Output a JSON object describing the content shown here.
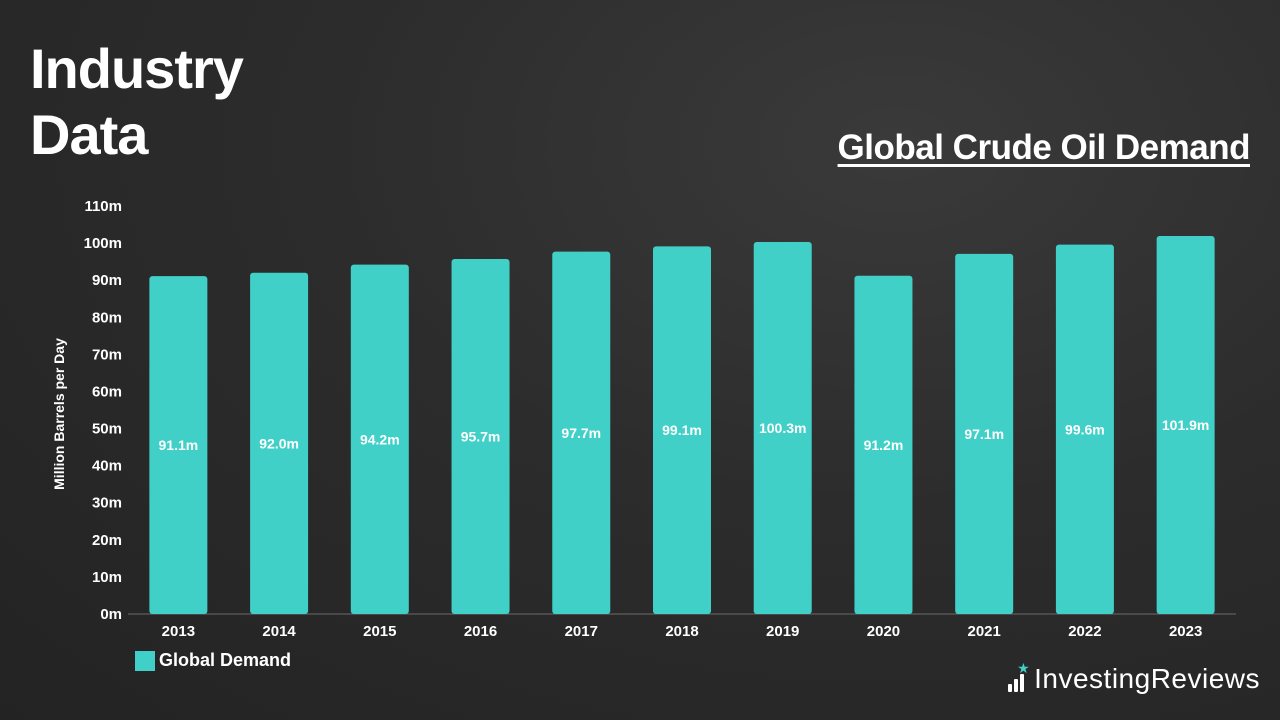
{
  "heading": {
    "line1": "Industry",
    "line2": "Data"
  },
  "chart_title": "Global Crude Oil Demand",
  "colors": {
    "bar": "#40d0c8",
    "background": "#2c2c2c",
    "text": "#ffffff",
    "accent": "#40d0c8"
  },
  "chart_data": {
    "type": "bar",
    "title": "Global Crude Oil Demand",
    "categories": [
      "2013",
      "2014",
      "2015",
      "2016",
      "2017",
      "2018",
      "2019",
      "2020",
      "2021",
      "2022",
      "2023"
    ],
    "series": [
      {
        "name": "Global Demand",
        "values": [
          91.1,
          92.0,
          94.2,
          95.7,
          97.7,
          99.1,
          100.3,
          91.2,
          97.1,
          99.6,
          101.9
        ]
      }
    ],
    "data_labels": [
      "91.1m",
      "92.0m",
      "94.2m",
      "95.7m",
      "97.7m",
      "99.1m",
      "100.3m",
      "91.2m",
      "97.1m",
      "99.6m",
      "101.9m"
    ],
    "ylabel": "Million Barrels per Day",
    "xlabel": "",
    "ylim": [
      0,
      110
    ],
    "yticks": [
      "0m",
      "10m",
      "20m",
      "30m",
      "40m",
      "50m",
      "60m",
      "70m",
      "80m",
      "90m",
      "100m",
      "110m"
    ],
    "grid": false,
    "legend_position": "bottom-left"
  },
  "legend": {
    "label": "Global Demand"
  },
  "brand": {
    "name_part1": "Investing",
    "name_part2": "Reviews",
    "icon": "bar-chart-star-logo-icon"
  }
}
